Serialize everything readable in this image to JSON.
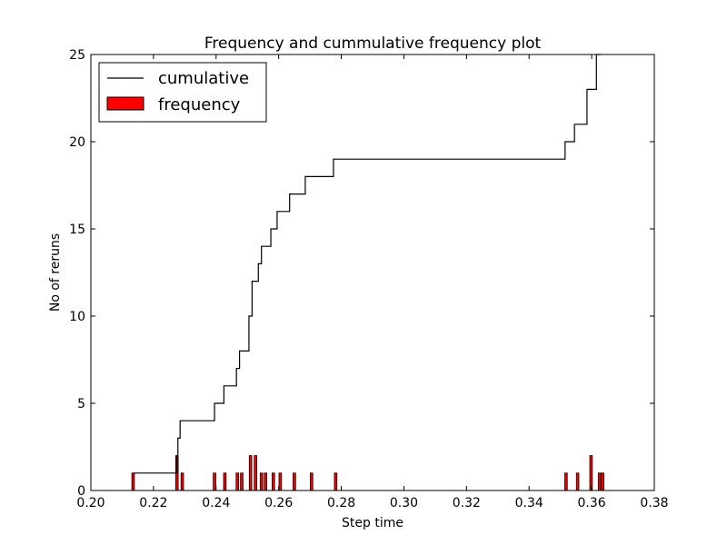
{
  "chart_data": {
    "type": "bar",
    "title": "Frequency and cummulative frequency plot",
    "xlabel": "Step time",
    "ylabel": "No of reruns",
    "xlim": [
      0.2,
      0.38
    ],
    "ylim": [
      0,
      25
    ],
    "x_ticks": [
      "0.20",
      "0.22",
      "0.24",
      "0.26",
      "0.28",
      "0.30",
      "0.32",
      "0.34",
      "0.36",
      "0.38"
    ],
    "y_ticks": [
      "0",
      "5",
      "10",
      "15",
      "20",
      "25"
    ],
    "grid": false,
    "legend_position": "top-left",
    "series": [
      {
        "name": "cumulative",
        "kind": "step-line",
        "color": "#000000",
        "points": [
          [
            0.2135,
            1
          ],
          [
            0.2275,
            1
          ],
          [
            0.2275,
            2
          ],
          [
            0.2278,
            2
          ],
          [
            0.2278,
            3
          ],
          [
            0.2285,
            3
          ],
          [
            0.2285,
            4
          ],
          [
            0.2395,
            4
          ],
          [
            0.2395,
            5
          ],
          [
            0.2425,
            5
          ],
          [
            0.2425,
            6
          ],
          [
            0.2465,
            6
          ],
          [
            0.2465,
            7
          ],
          [
            0.2475,
            7
          ],
          [
            0.2475,
            8
          ],
          [
            0.2505,
            8
          ],
          [
            0.2505,
            10
          ],
          [
            0.2515,
            10
          ],
          [
            0.2515,
            12
          ],
          [
            0.2535,
            12
          ],
          [
            0.2535,
            13
          ],
          [
            0.2545,
            13
          ],
          [
            0.2545,
            14
          ],
          [
            0.2575,
            14
          ],
          [
            0.2575,
            15
          ],
          [
            0.2595,
            15
          ],
          [
            0.2595,
            16
          ],
          [
            0.2635,
            16
          ],
          [
            0.2635,
            17
          ],
          [
            0.2685,
            17
          ],
          [
            0.2685,
            18
          ],
          [
            0.2775,
            18
          ],
          [
            0.2775,
            19
          ],
          [
            0.3515,
            19
          ],
          [
            0.3515,
            20
          ],
          [
            0.3545,
            20
          ],
          [
            0.3545,
            21
          ],
          [
            0.3585,
            21
          ],
          [
            0.3585,
            23
          ],
          [
            0.3615,
            23
          ],
          [
            0.3615,
            25
          ],
          [
            0.363,
            25
          ]
        ]
      },
      {
        "name": "frequency",
        "kind": "bars",
        "color": "#ff0000",
        "x": [
          0.2135,
          0.2275,
          0.2292,
          0.2395,
          0.2428,
          0.2468,
          0.2482,
          0.251,
          0.2526,
          0.2545,
          0.2558,
          0.2583,
          0.2605,
          0.265,
          0.2705,
          0.2782,
          0.3518,
          0.3555,
          0.3598,
          0.3625,
          0.3635
        ],
        "values": [
          1,
          2,
          1,
          1,
          1,
          1,
          1,
          2,
          2,
          1,
          1,
          1,
          1,
          1,
          1,
          1,
          1,
          1,
          2,
          1,
          1
        ],
        "bar_width": 0.0008
      }
    ]
  }
}
